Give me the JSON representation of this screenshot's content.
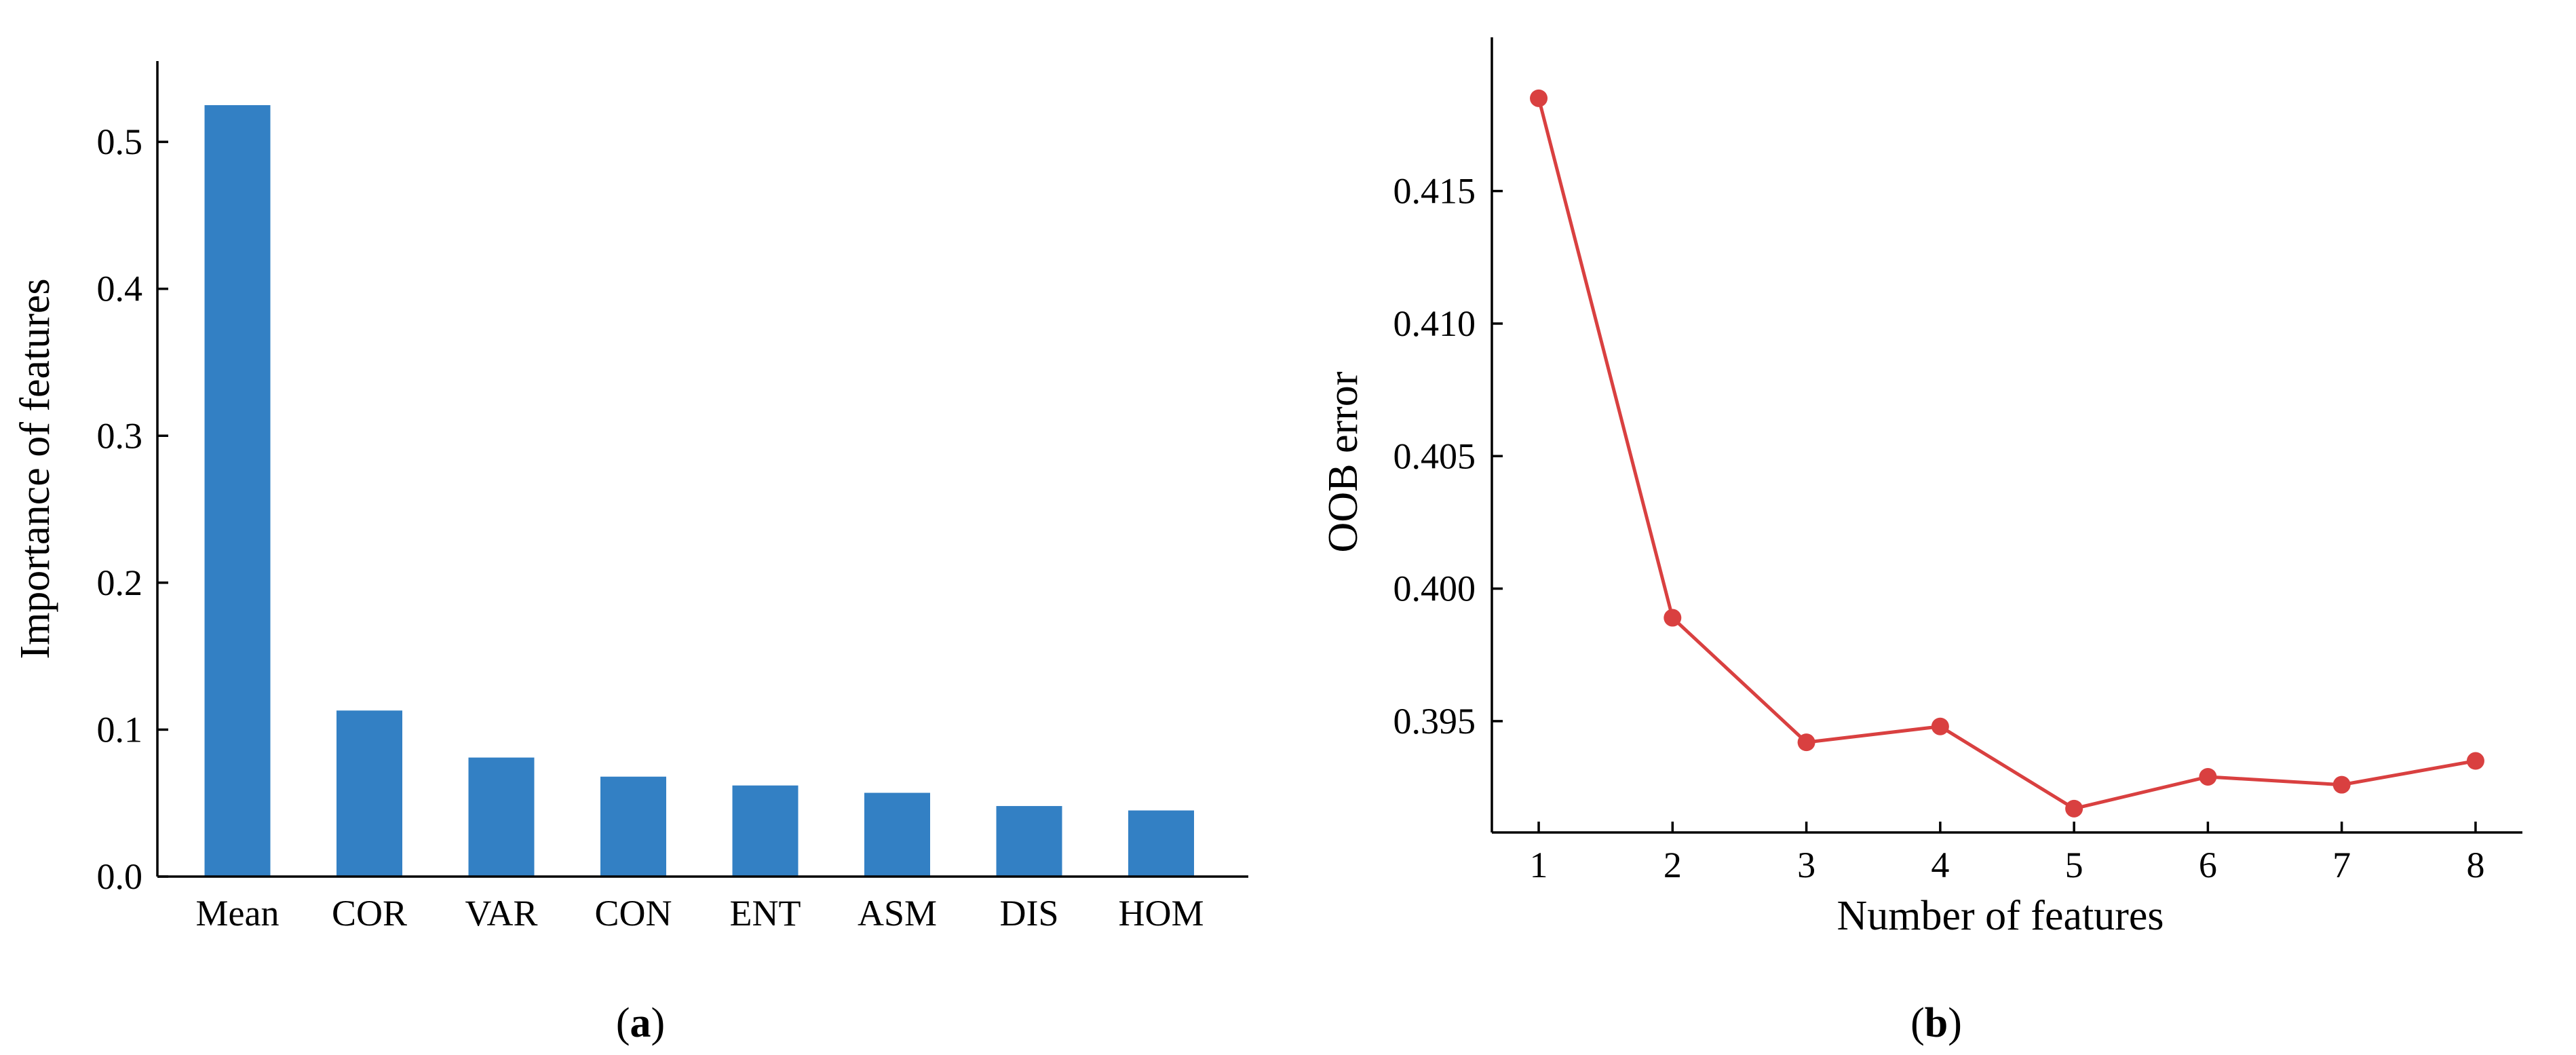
{
  "chart_data": [
    {
      "type": "bar",
      "panel_label": "a",
      "categories": [
        "Mean",
        "COR",
        "VAR",
        "CON",
        "ENT",
        "ASM",
        "DIS",
        "HOM"
      ],
      "values": [
        0.525,
        0.113,
        0.081,
        0.068,
        0.062,
        0.057,
        0.048,
        0.045
      ],
      "ylabel": "Importance of features",
      "xlabel": "",
      "ylim": [
        0,
        0.555
      ],
      "yticks": [
        "0.0",
        "0.1",
        "0.2",
        "0.3",
        "0.4",
        "0.5"
      ],
      "color": "#3380C4",
      "grid": false
    },
    {
      "type": "line",
      "panel_label": "b",
      "x": [
        1,
        2,
        3,
        4,
        5,
        6,
        7,
        8
      ],
      "y": [
        0.4185,
        0.3989,
        0.3942,
        0.3948,
        0.3917,
        0.3929,
        0.3926,
        0.3935
      ],
      "xlabel": "Number of features",
      "ylabel": "OOB error",
      "xlim": [
        0.65,
        8.35
      ],
      "ylim": [
        0.3908,
        0.4208
      ],
      "xticks": [
        "1",
        "2",
        "3",
        "4",
        "5",
        "6",
        "7",
        "8"
      ],
      "yticks": [
        "0.395",
        "0.400",
        "0.405",
        "0.410",
        "0.415"
      ],
      "color": "#D94040",
      "grid": false
    }
  ]
}
